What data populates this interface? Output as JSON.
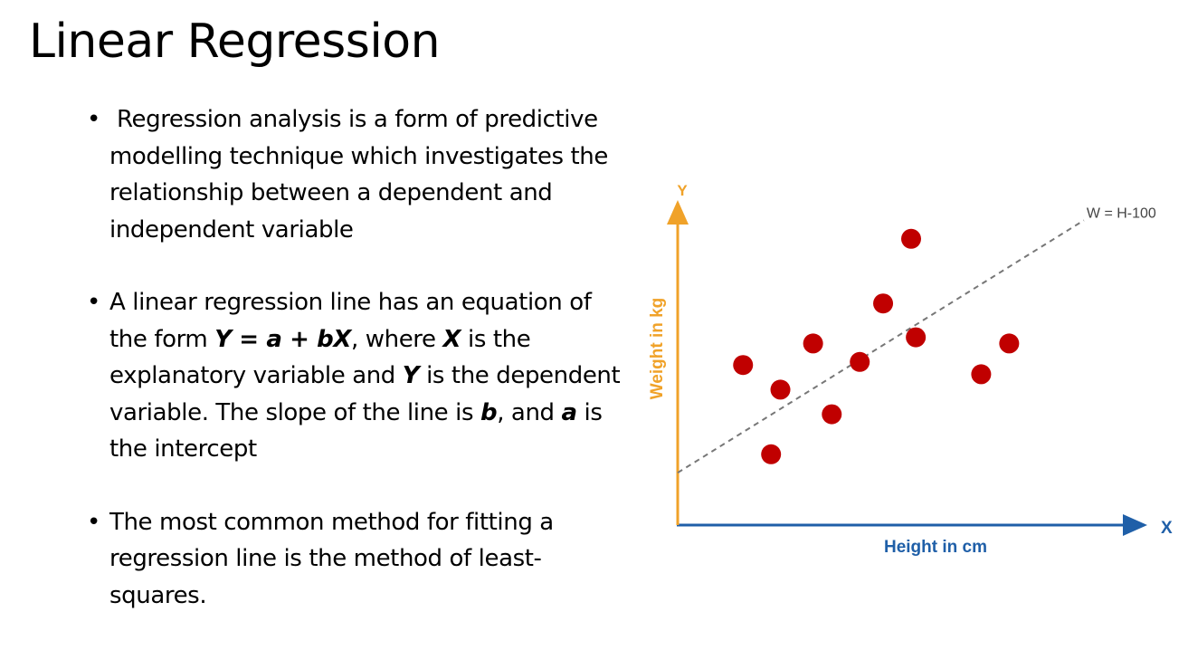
{
  "slide": {
    "title": "Linear Regression",
    "bullets": [
      {
        "segments": [
          {
            "text": "Regression analysis is a form of predictive modelling technique which investigates the relationship between a dependent and independent variable",
            "bold_italic": false
          }
        ]
      },
      {
        "segments": [
          {
            "text": "A linear regression line has an equation of the form ",
            "bold_italic": false
          },
          {
            "text": "Y = a + bX",
            "bold_italic": true
          },
          {
            "text": ", where ",
            "bold_italic": false
          },
          {
            "text": "X",
            "bold_italic": true
          },
          {
            "text": " is the explanatory variable and ",
            "bold_italic": false
          },
          {
            "text": "Y",
            "bold_italic": true
          },
          {
            "text": " is the dependent variable. The slope of the line is ",
            "bold_italic": false
          },
          {
            "text": "b",
            "bold_italic": true
          },
          {
            "text": ", and ",
            "bold_italic": false
          },
          {
            "text": "a",
            "bold_italic": true
          },
          {
            "text": " is the intercept",
            "bold_italic": false
          }
        ]
      },
      {
        "segments": [
          {
            "text": "The most common method for fitting a regression line is the method of least-squares.",
            "bold_italic": false
          }
        ]
      }
    ]
  },
  "chart_data": {
    "type": "scatter",
    "title": "",
    "xlabel": "Height in cm",
    "ylabel": "Weight in kg",
    "x_axis_letter": "X",
    "y_axis_letter": "Y",
    "xlim": [
      0,
      10
    ],
    "ylim": [
      0,
      10
    ],
    "points": [
      {
        "x": 1.4,
        "y": 5.2
      },
      {
        "x": 2.0,
        "y": 2.3
      },
      {
        "x": 2.2,
        "y": 4.4
      },
      {
        "x": 2.9,
        "y": 5.9
      },
      {
        "x": 3.3,
        "y": 3.6
      },
      {
        "x": 3.9,
        "y": 5.3
      },
      {
        "x": 4.4,
        "y": 7.2
      },
      {
        "x": 5.0,
        "y": 9.3
      },
      {
        "x": 5.1,
        "y": 6.1
      },
      {
        "x": 6.5,
        "y": 4.9
      },
      {
        "x": 7.1,
        "y": 5.9
      }
    ],
    "trend_line": {
      "label": "W = H-100",
      "from": [
        0,
        1.7
      ],
      "to": [
        8.7,
        9.9
      ]
    },
    "colors": {
      "points": "#c00000",
      "x_axis": "#1f5fa8",
      "y_axis": "#f0a229",
      "trend_line": "#777777"
    }
  }
}
